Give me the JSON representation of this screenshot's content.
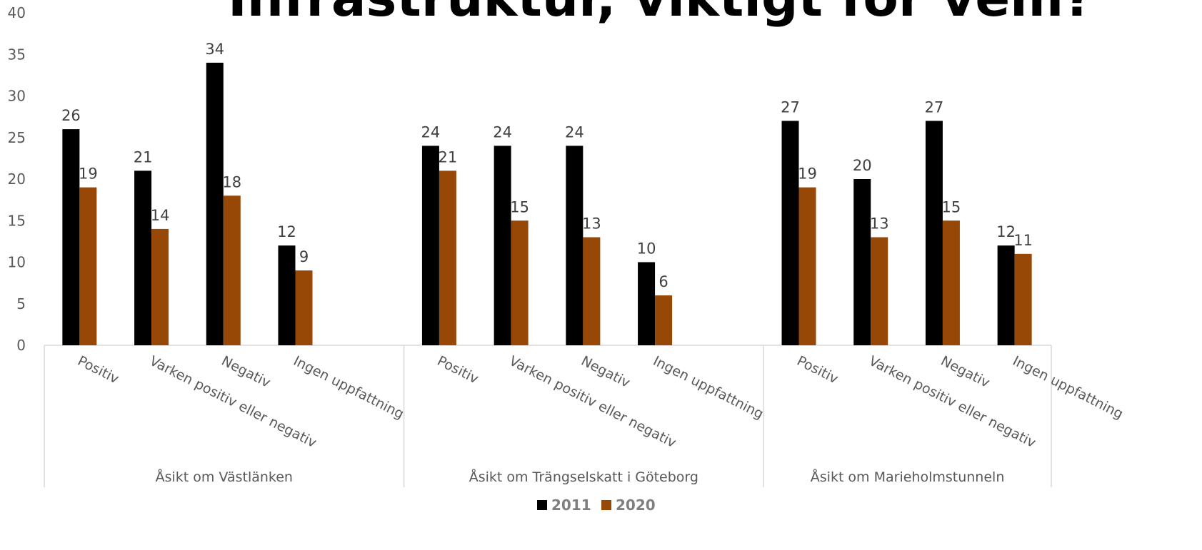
{
  "chart_data": {
    "type": "bar",
    "title": "Infrastruktur, viktigt för vem?",
    "categories": [
      "Positiv",
      "Varken positiv eller negativ",
      "Negativ",
      "Ingen uppfattning",
      null,
      "Positiv",
      "Varken positiv eller negativ",
      "Negativ",
      "Ingen uppfattning",
      null,
      "Positiv",
      "Varken positiv eller negativ",
      "Negativ",
      "Ingen uppfattning"
    ],
    "groups": [
      "Åsikt om Västlänken",
      "Åsikt om Trängselskatt i Göteborg",
      "Åsikt om Marieholmstunneln"
    ],
    "series": [
      {
        "name": "2011",
        "color": "#000000",
        "values": [
          26,
          21,
          34,
          12,
          null,
          24,
          24,
          24,
          10,
          null,
          27,
          20,
          27,
          12
        ]
      },
      {
        "name": "2020",
        "color": "#974706",
        "values": [
          19,
          14,
          18,
          9,
          null,
          21,
          15,
          13,
          6,
          null,
          19,
          13,
          15,
          11
        ]
      }
    ],
    "ylim": [
      0,
      40
    ],
    "yticks": [
      0,
      5,
      10,
      15,
      20,
      25,
      30,
      35,
      40
    ],
    "grid": false,
    "legend": "bottom"
  }
}
